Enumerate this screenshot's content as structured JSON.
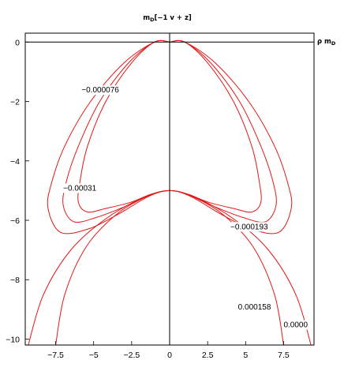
{
  "chart_data": {
    "type": "contour",
    "title": "m_D[-1 v + z]",
    "title_parts": {
      "main": "m",
      "sub": "D",
      "rest": "[−1 v + z]"
    },
    "side_label_parts": {
      "main": "ρ m",
      "sub": "D"
    },
    "xlim": [
      -9.5,
      9.5
    ],
    "ylim": [
      -10.2,
      0.3
    ],
    "x_ticks": [
      {
        "value": -7.5,
        "label": "−7.5"
      },
      {
        "value": -5,
        "label": "−5"
      },
      {
        "value": -2.5,
        "label": "−2.5"
      },
      {
        "value": 0,
        "label": "0"
      },
      {
        "value": 2.5,
        "label": "2.5"
      },
      {
        "value": 5,
        "label": "5"
      },
      {
        "value": 7.5,
        "label": "7.5"
      }
    ],
    "y_ticks": [
      {
        "value": 0,
        "label": "0"
      },
      {
        "value": -2,
        "label": "−2"
      },
      {
        "value": -4,
        "label": "−4"
      },
      {
        "value": -6,
        "label": "−6"
      },
      {
        "value": -8,
        "label": "−8"
      },
      {
        "value": -10,
        "label": "−10"
      }
    ],
    "grid": false,
    "series": [
      {
        "label": "−0.000076",
        "closed": true,
        "points": [
          [
            0,
            0
          ],
          [
            -1,
            0
          ],
          [
            -2.5,
            -0.7
          ],
          [
            -4.2,
            -2
          ],
          [
            -5.4,
            -3.5
          ],
          [
            -5.9,
            -4.7
          ],
          [
            -6.0,
            -5.4
          ],
          [
            -5.4,
            -5.72
          ],
          [
            -4.2,
            -5.6
          ],
          [
            -2.6,
            -5.4
          ],
          [
            -1.2,
            -5.12
          ],
          [
            0,
            -5
          ],
          [
            1.2,
            -5.12
          ],
          [
            2.6,
            -5.4
          ],
          [
            4.2,
            -5.6
          ],
          [
            5.4,
            -5.72
          ],
          [
            6.0,
            -5.4
          ],
          [
            5.9,
            -4.7
          ],
          [
            5.4,
            -3.5
          ],
          [
            4.2,
            -2
          ],
          [
            2.5,
            -0.7
          ],
          [
            1,
            0
          ],
          [
            0,
            0
          ]
        ]
      },
      {
        "label": "−0.00031",
        "closed": true,
        "points": [
          [
            0,
            0
          ],
          [
            -1,
            0
          ],
          [
            -2.7,
            -0.7
          ],
          [
            -4.6,
            -2
          ],
          [
            -6.0,
            -3.5
          ],
          [
            -6.8,
            -4.7
          ],
          [
            -7.0,
            -5.5
          ],
          [
            -6.3,
            -6.05
          ],
          [
            -4.8,
            -5.9
          ],
          [
            -3.0,
            -5.55
          ],
          [
            -1.3,
            -5.15
          ],
          [
            0,
            -5
          ],
          [
            1.3,
            -5.15
          ],
          [
            3.0,
            -5.55
          ],
          [
            4.8,
            -5.9
          ],
          [
            6.3,
            -6.05
          ],
          [
            7.0,
            -5.5
          ],
          [
            6.8,
            -4.7
          ],
          [
            6.0,
            -3.5
          ],
          [
            4.6,
            -2
          ],
          [
            2.7,
            -0.7
          ],
          [
            1,
            0
          ],
          [
            0,
            0
          ]
        ]
      },
      {
        "label": "−0.000193",
        "closed": true,
        "points": [
          [
            0,
            0
          ],
          [
            -1,
            0
          ],
          [
            -3.0,
            -0.7
          ],
          [
            -5.2,
            -2
          ],
          [
            -6.9,
            -3.5
          ],
          [
            -7.8,
            -4.8
          ],
          [
            -8.0,
            -5.6
          ],
          [
            -7.2,
            -6.4
          ],
          [
            -5.4,
            -6.3
          ],
          [
            -3.4,
            -5.8
          ],
          [
            -1.4,
            -5.2
          ],
          [
            0,
            -5
          ],
          [
            1.4,
            -5.2
          ],
          [
            3.4,
            -5.8
          ],
          [
            5.4,
            -6.3
          ],
          [
            7.2,
            -6.4
          ],
          [
            8.0,
            -5.6
          ],
          [
            7.8,
            -4.8
          ],
          [
            6.9,
            -3.5
          ],
          [
            5.2,
            -2
          ],
          [
            3.0,
            -0.7
          ],
          [
            1,
            0
          ],
          [
            0,
            0
          ]
        ]
      },
      {
        "label": "0.000158",
        "closed": false,
        "points": [
          [
            -7.5,
            -10.2
          ],
          [
            -6.9,
            -8.5
          ],
          [
            -5.5,
            -6.9
          ],
          [
            -3.5,
            -5.8
          ],
          [
            -1.5,
            -5.2
          ],
          [
            0,
            -5
          ],
          [
            1.5,
            -5.2
          ],
          [
            3.5,
            -5.8
          ],
          [
            5.5,
            -6.9
          ],
          [
            6.9,
            -8.5
          ],
          [
            7.5,
            -10.2
          ]
        ]
      },
      {
        "label": "0.0000",
        "closed": false,
        "points": [
          [
            -9.3,
            -10.2
          ],
          [
            -8.3,
            -8.5
          ],
          [
            -6.5,
            -7.0
          ],
          [
            -4.2,
            -5.95
          ],
          [
            -1.8,
            -5.25
          ],
          [
            0,
            -5
          ],
          [
            1.8,
            -5.25
          ],
          [
            4.2,
            -5.95
          ],
          [
            6.5,
            -7.0
          ],
          [
            8.3,
            -8.5
          ],
          [
            9.3,
            -10.2
          ]
        ]
      }
    ],
    "contour_labels": [
      {
        "text": "−0.000076",
        "x": -5.8,
        "y": -1.7
      },
      {
        "text": "−0.00031",
        "x": -7.0,
        "y": -5.0
      },
      {
        "text": "−0.000193",
        "x": 4.0,
        "y": -6.3
      },
      {
        "text": "0.000158",
        "x": 4.5,
        "y": -9.0
      },
      {
        "text": "0.0000",
        "x": 7.5,
        "y": -9.6
      }
    ]
  }
}
